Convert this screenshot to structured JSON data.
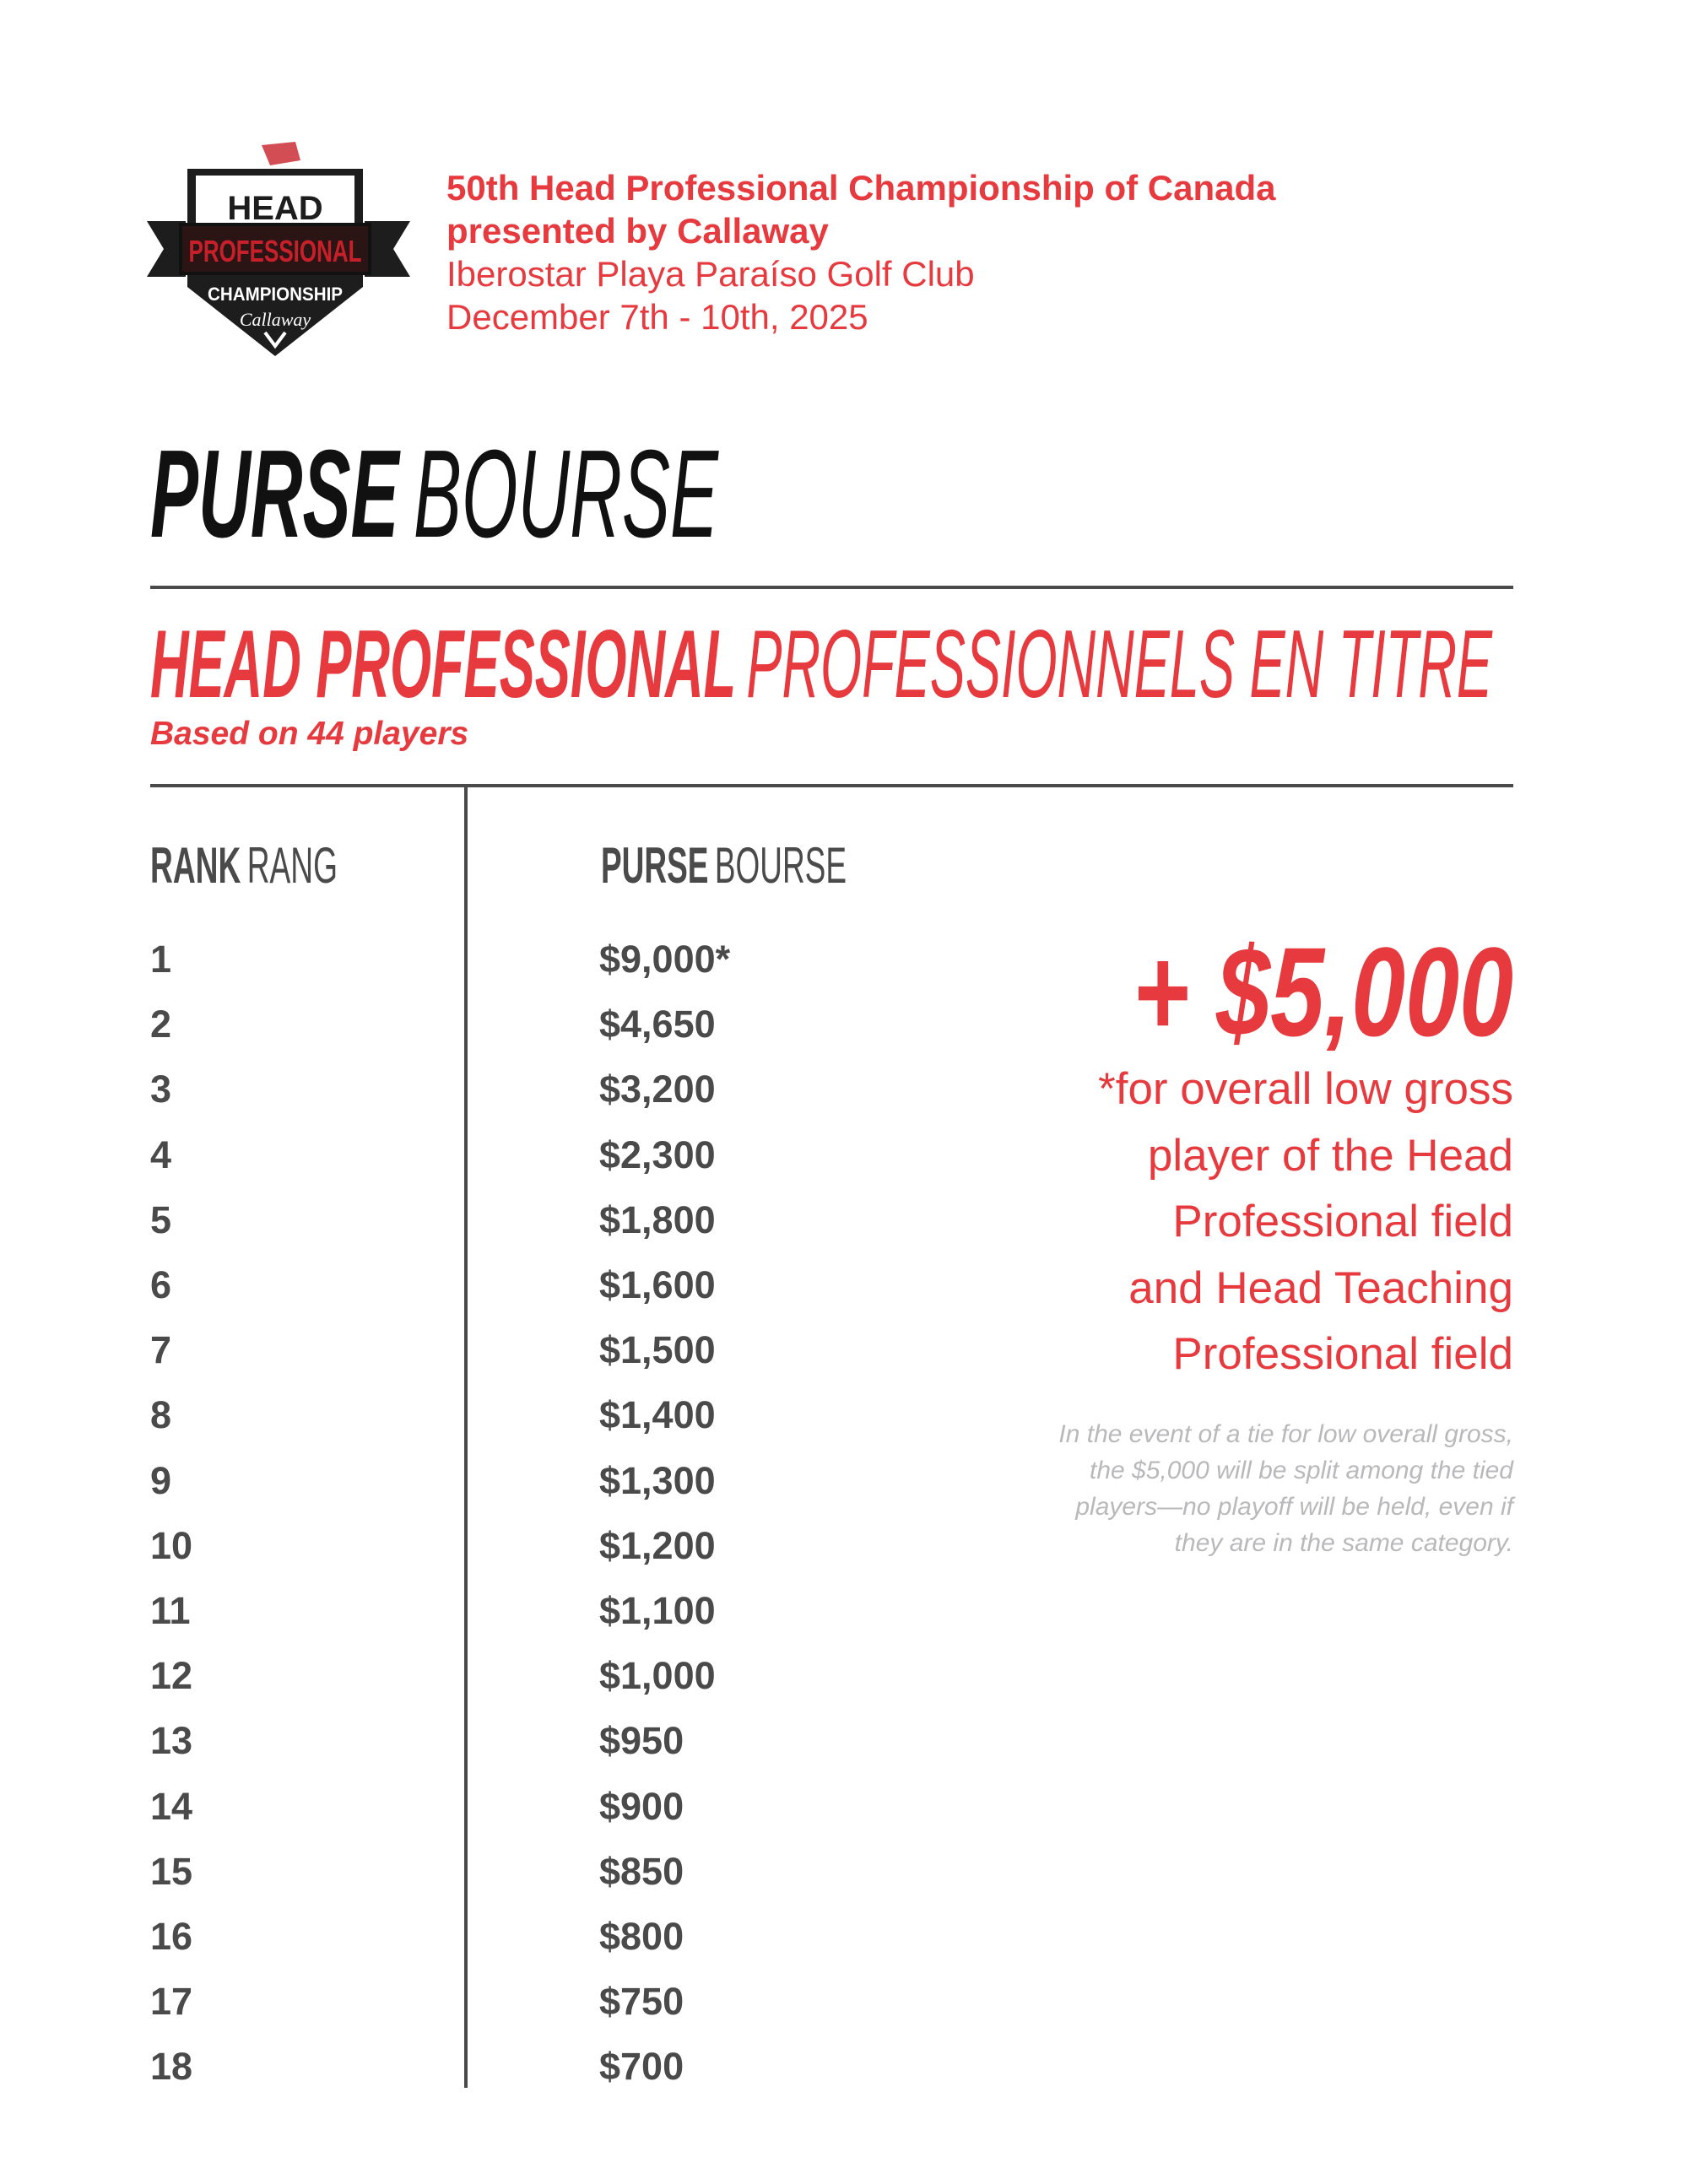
{
  "logo": {
    "text": "HEAD PROFESSIONAL CHAMPIONSHIP Callaway"
  },
  "header": {
    "line1": "50th Head Professional Championship of Canada",
    "line2": "presented by Callaway",
    "line3": "Iberostar Playa Paraíso Golf Club",
    "line4": "December 7th - 10th, 2025"
  },
  "title": {
    "bold": "PURSE",
    "light": "BOURSE"
  },
  "section": {
    "bold": "HEAD PROFESSIONAL",
    "light": "PROFESSIONNELS EN TITRE",
    "subtitle": "Based on 44 players"
  },
  "table": {
    "rank_header": {
      "bold": "RANK",
      "light": "RANG"
    },
    "purse_header": {
      "bold": "PURSE",
      "light": "BOURSE"
    },
    "rows": [
      {
        "rank": "1",
        "purse": "$9,000*"
      },
      {
        "rank": "2",
        "purse": "$4,650"
      },
      {
        "rank": "3",
        "purse": "$3,200"
      },
      {
        "rank": "4",
        "purse": "$2,300"
      },
      {
        "rank": "5",
        "purse": "$1,800"
      },
      {
        "rank": "6",
        "purse": "$1,600"
      },
      {
        "rank": "7",
        "purse": "$1,500"
      },
      {
        "rank": "8",
        "purse": "$1,400"
      },
      {
        "rank": "9",
        "purse": "$1,300"
      },
      {
        "rank": "10",
        "purse": "$1,200"
      },
      {
        "rank": "11",
        "purse": "$1,100"
      },
      {
        "rank": "12",
        "purse": "$1,000"
      },
      {
        "rank": "13",
        "purse": "$950"
      },
      {
        "rank": "14",
        "purse": "$900"
      },
      {
        "rank": "15",
        "purse": "$850"
      },
      {
        "rank": "16",
        "purse": "$800"
      },
      {
        "rank": "17",
        "purse": "$750"
      },
      {
        "rank": "18",
        "purse": "$700"
      }
    ]
  },
  "bonus": {
    "amount": "+ $5,000",
    "lines": [
      "*for overall low gross",
      "player of the Head",
      "Professional field",
      "and Head Teaching",
      "Professional field"
    ],
    "note": [
      "In the event of a tie for low overall gross,",
      "the $5,000 will be split among the tied",
      "players—no playoff will be held, even if",
      "they are in the same category."
    ]
  },
  "colors": {
    "accent": "#e63a3f",
    "text": "#4a4a4a",
    "note": "#b9b9bc"
  }
}
